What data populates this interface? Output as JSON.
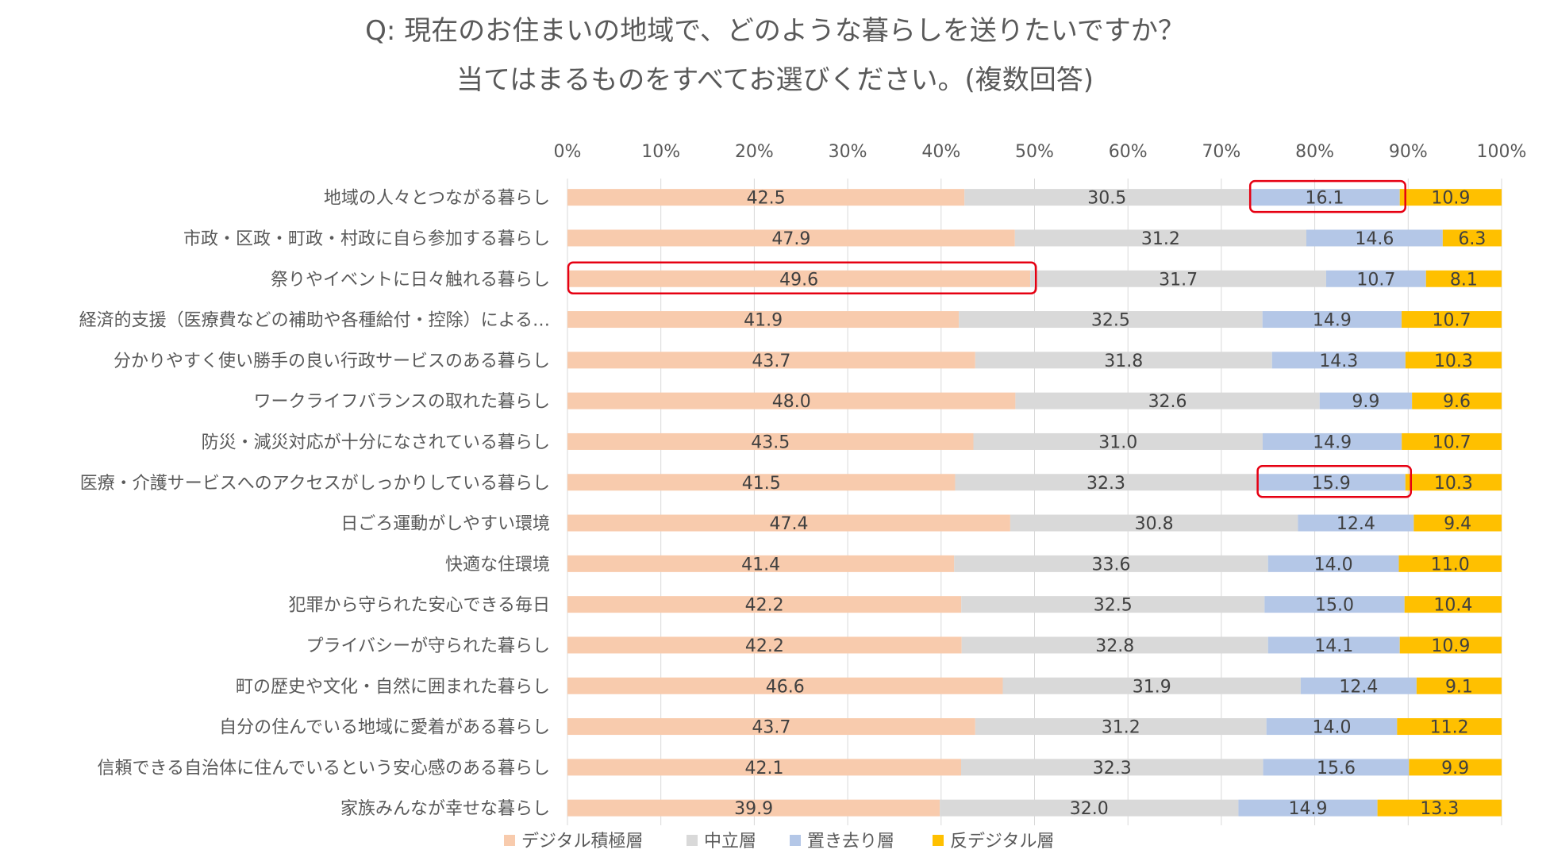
{
  "chart_data": {
    "type": "bar",
    "orientation": "horizontal",
    "stacked": "percent",
    "title_lines": [
      "Q: 現在のお住まいの地域で、どのような暮らしを送りたいですか？",
      "当てはまるものをすべてお選びください。(複数回答)"
    ],
    "x_ticks": [
      "0%",
      "10%",
      "20%",
      "30%",
      "40%",
      "50%",
      "60%",
      "70%",
      "80%",
      "90%",
      "100%"
    ],
    "xlim": [
      0,
      100
    ],
    "grid": "vertical",
    "legend_position": "bottom",
    "categories": [
      "地域の人々とつながる暮らし",
      "市政・区政・町政・村政に自ら参加する暮らし",
      "祭りやイベントに日々触れる暮らし",
      "経済的支援（医療費などの補助や各種給付・控除）による…",
      "分かりやすく使い勝手の良い行政サービスのある暮らし",
      "ワークライフバランスの取れた暮らし",
      "防災・減災対応が十分になされている暮らし",
      "医療・介護サービスへのアクセスがしっかりしている暮らし",
      "日ごろ運動がしやすい環境",
      "快適な住環境",
      "犯罪から守られた安心できる毎日",
      "プライバシーが守られた暮らし",
      "町の歴史や文化・自然に囲まれた暮らし",
      "自分の住んでいる地域に愛着がある暮らし",
      "信頼できる自治体に住んでいるという安心感のある暮らし",
      "家族みんなが幸せな暮らし"
    ],
    "series": [
      {
        "name": "デジタル積極層",
        "color": "#F8CBAD",
        "values": [
          42.5,
          47.9,
          49.6,
          41.9,
          43.7,
          48.0,
          43.5,
          41.5,
          47.4,
          41.4,
          42.2,
          42.2,
          46.6,
          43.7,
          42.1,
          39.9
        ],
        "labels": [
          "42.5",
          "47.9",
          "49.6",
          "41.9",
          "43.7",
          "48.0",
          "43.5",
          "41.5",
          "47.4",
          "41.4",
          "42.2",
          "42.2",
          "46.6",
          "43.7",
          "42.1",
          "39.9"
        ]
      },
      {
        "name": "中立層",
        "color": "#D9D9D9",
        "values": [
          30.5,
          31.2,
          31.7,
          32.5,
          31.8,
          32.6,
          31.0,
          32.3,
          30.8,
          33.6,
          32.5,
          32.8,
          31.9,
          31.2,
          32.3,
          32.0
        ],
        "labels": [
          "30.5",
          "31.2",
          "31.7",
          "32.5",
          "31.8",
          "32.6",
          "31.0",
          "32.3",
          "30.8",
          "33.6",
          "32.5",
          "32.8",
          "31.9",
          "31.2",
          "32.3",
          "32.0"
        ]
      },
      {
        "name": "置き去り層",
        "color": "#B4C7E7",
        "values": [
          16.1,
          14.6,
          10.7,
          14.9,
          14.3,
          9.9,
          14.9,
          15.9,
          12.4,
          14.0,
          15.0,
          14.1,
          12.4,
          14.0,
          15.6,
          14.9
        ],
        "labels": [
          "16.1",
          "14.6",
          "10.7",
          "14.9",
          "14.3",
          "9.9",
          "14.9",
          "15.9",
          "12.4",
          "14.0",
          "15.0",
          "14.1",
          "12.4",
          "14.0",
          "15.6",
          "14.9"
        ]
      },
      {
        "name": "反デジタル層",
        "color": "#FFC000",
        "values": [
          10.9,
          6.3,
          8.1,
          10.7,
          10.3,
          9.6,
          10.7,
          10.3,
          9.4,
          11.0,
          10.4,
          10.9,
          9.1,
          11.2,
          9.9,
          13.3
        ],
        "labels": [
          "10.9",
          "6.3",
          "8.1",
          "10.7",
          "10.3",
          "9.6",
          "10.7",
          "10.3",
          "9.4",
          "11.0",
          "10.4",
          "10.9",
          "9.1",
          "11.2",
          "9.9",
          "13.3"
        ]
      }
    ],
    "highlights": [
      {
        "category_index": 0,
        "series_index": 2
      },
      {
        "category_index": 2,
        "series_index": 0
      },
      {
        "category_index": 7,
        "series_index": 2
      }
    ],
    "highlight_color": "#E60012"
  }
}
